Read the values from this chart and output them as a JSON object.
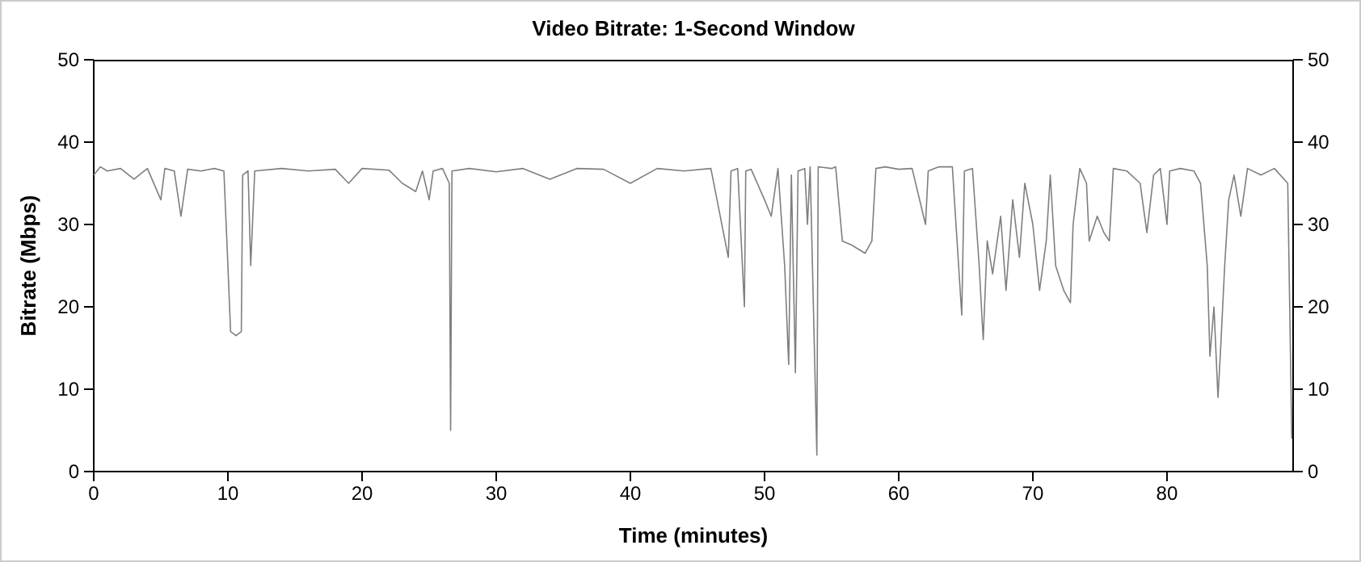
{
  "chart_data": {
    "type": "line",
    "title": "Video Bitrate: 1-Second Window",
    "xlabel": "Time (minutes)",
    "ylabel": "Bitrate (Mbps)",
    "xlim": [
      0,
      89.4
    ],
    "xticks": [
      0,
      10,
      20,
      30,
      40,
      50,
      60,
      70,
      80
    ],
    "ylim": [
      0,
      50
    ],
    "yticks": [
      0,
      10,
      20,
      30,
      40,
      50
    ],
    "y2lim": [
      0,
      50
    ],
    "y2ticks": [
      0,
      10,
      20,
      30,
      40,
      50
    ],
    "grid": false,
    "marker": "none",
    "line_style": "solid",
    "series": [
      {
        "color": "#7f7f7f",
        "x": [
          0,
          0.5,
          1,
          2,
          3,
          4,
          5,
          5.3,
          6,
          6.5,
          7,
          8,
          9,
          9.7,
          10,
          10.2,
          10.6,
          11,
          11.1,
          11.5,
          11.7,
          12,
          14,
          16,
          18,
          19,
          20,
          22,
          23,
          24,
          24.5,
          25,
          25.3,
          26,
          26.5,
          26.6,
          26.7,
          28,
          30,
          32,
          34,
          36,
          38,
          40,
          42,
          44,
          46,
          47.3,
          47.5,
          48,
          48.5,
          48.6,
          49,
          50,
          50.5,
          51,
          51.5,
          51.8,
          52,
          52.3,
          52.5,
          53,
          53.2,
          53.4,
          53.9,
          54,
          55,
          55.3,
          55.8,
          56.5,
          57.5,
          58,
          58.3,
          59,
          60,
          61,
          62,
          62.2,
          63,
          64,
          64.7,
          64.9,
          65.5,
          66,
          66.3,
          66.6,
          67,
          67.6,
          68,
          68.5,
          69,
          69.4,
          70,
          70.5,
          71,
          71.3,
          71.7,
          72.3,
          72.8,
          73,
          73.5,
          74,
          74.2,
          74.8,
          75.3,
          75.7,
          76,
          77,
          78,
          78.5,
          79,
          79.5,
          80,
          80.2,
          81,
          82,
          82.5,
          83,
          83.2,
          83.5,
          83.8,
          84,
          84.3,
          84.6,
          85,
          85.5,
          86,
          87,
          88,
          89,
          89.3
        ],
        "values": [
          36,
          37,
          36.5,
          36.8,
          35.5,
          36.8,
          33,
          36.8,
          36.5,
          31,
          36.7,
          36.5,
          36.8,
          36.5,
          25,
          17,
          16.5,
          17,
          36,
          36.5,
          25,
          36.5,
          36.8,
          36.5,
          36.7,
          35,
          36.8,
          36.6,
          35,
          34,
          36.5,
          33,
          36.5,
          36.8,
          35,
          5,
          36.5,
          36.8,
          36.4,
          36.8,
          35.5,
          36.8,
          36.7,
          35,
          36.8,
          36.5,
          36.8,
          26,
          36.5,
          36.8,
          20,
          36.5,
          36.7,
          33,
          31,
          36.8,
          25,
          13,
          36,
          12,
          36.5,
          36.8,
          30,
          37,
          2,
          37,
          36.8,
          37,
          28,
          27.5,
          26.5,
          28,
          36.8,
          37,
          36.7,
          36.8,
          30,
          36.5,
          37,
          37,
          19,
          36.5,
          36.8,
          25,
          16,
          28,
          24,
          31,
          22,
          33,
          26,
          35,
          30,
          22,
          28,
          36,
          25,
          22,
          20.5,
          30,
          36.8,
          35,
          28,
          31,
          29,
          28,
          36.8,
          36.5,
          35,
          29,
          36,
          36.8,
          30,
          36.5,
          36.8,
          36.5,
          35,
          25,
          14,
          20,
          9,
          15,
          25,
          33,
          36,
          31,
          36.8,
          36,
          36.8,
          35,
          4
        ]
      }
    ]
  }
}
